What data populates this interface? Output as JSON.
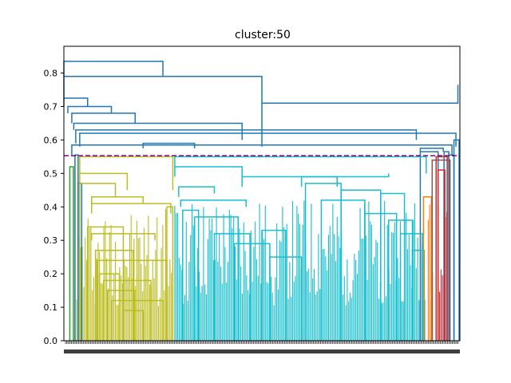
{
  "chart_data": {
    "type": "dendrogram",
    "title": "cluster:50",
    "xlabel": "",
    "ylabel": "",
    "ylim": [
      0,
      0.88
    ],
    "yticks": [
      0.0,
      0.1,
      0.2,
      0.3,
      0.4,
      0.5,
      0.6,
      0.7,
      0.8
    ],
    "ytick_labels": [
      "0.0",
      "0.1",
      "0.2",
      "0.3",
      "0.4",
      "0.5",
      "0.6",
      "0.7",
      "0.8"
    ],
    "x_domain": [
      0,
      1000
    ],
    "cut_threshold": 0.553,
    "cut_line_color": "#800080",
    "colors": {
      "above": "#1f77b4",
      "olive": "#bcbd22",
      "cyan": "#17becf",
      "orange": "#ff7f0e",
      "red": "#d62728",
      "brown": "#8c564b",
      "green": "#2ca02c"
    },
    "links": [
      {
        "x": [
          0,
          250
        ],
        "top": 0.835,
        "bottom": [
          0.79,
          0.79
        ],
        "color": "above"
      },
      {
        "x": [
          0,
          500
        ],
        "top": 0.79,
        "bottom": [
          0.725,
          0.71
        ],
        "color": "above"
      },
      {
        "x": [
          500,
          995
        ],
        "top": 0.71,
        "bottom": [
          0.58,
          0.765
        ],
        "color": "above"
      },
      {
        "x": [
          0,
          60
        ],
        "top": 0.725,
        "bottom": [
          0.7,
          0.7
        ],
        "color": "above"
      },
      {
        "x": [
          10,
          120
        ],
        "top": 0.7,
        "bottom": [
          0.68,
          0.68
        ],
        "color": "above"
      },
      {
        "x": [
          20,
          180
        ],
        "top": 0.68,
        "bottom": [
          0.65,
          0.65
        ],
        "color": "above"
      },
      {
        "x": [
          25,
          450
        ],
        "top": 0.65,
        "bottom": [
          0.63,
          0.6
        ],
        "color": "above"
      },
      {
        "x": [
          30,
          890
        ],
        "top": 0.63,
        "bottom": [
          0.59,
          0.6
        ],
        "color": "above"
      },
      {
        "x": [
          40,
          990
        ],
        "top": 0.62,
        "bottom": [
          0.58,
          0.58
        ],
        "color": "above"
      },
      {
        "x": [
          20,
          980
        ],
        "top": 0.585,
        "bottom": [
          0.555,
          0.555
        ],
        "color": "above"
      },
      {
        "x": [
          200,
          330
        ],
        "top": 0.59,
        "bottom": [
          0.575,
          0.575
        ],
        "color": "above"
      },
      {
        "x": [
          28,
          36
        ],
        "top": 0.555,
        "bottom": [
          0.0,
          0.0
        ],
        "color": "above"
      },
      {
        "x": [
          36,
          45
        ],
        "top": 0.47,
        "bottom": [
          0.0,
          0.0
        ],
        "color": "above"
      },
      {
        "x": [
          960,
          972
        ],
        "top": 0.565,
        "bottom": [
          0.0,
          0.0
        ],
        "color": "above"
      },
      {
        "x": [
          972,
          985
        ],
        "top": 0.555,
        "bottom": [
          0.0,
          0.0
        ],
        "color": "above"
      },
      {
        "x": [
          985,
          998
        ],
        "top": 0.6,
        "bottom": [
          0.0,
          0.0
        ],
        "color": "above"
      },
      {
        "x": [
          900,
          958
        ],
        "top": 0.575,
        "bottom": [
          0.565,
          0.565
        ],
        "color": "above"
      },
      {
        "x": [
          900,
          945
        ],
        "top": 0.565,
        "bottom": [
          0.0,
          0.0
        ],
        "color": "above"
      },
      {
        "x": [
          40,
          275
        ],
        "top": 0.55,
        "bottom": [
          0.5,
          0.45
        ],
        "color": "olive"
      },
      {
        "x": [
          40,
          160
        ],
        "top": 0.5,
        "bottom": [
          0.47,
          0.45
        ],
        "color": "olive"
      },
      {
        "x": [
          40,
          130
        ],
        "top": 0.47,
        "bottom": [
          0.0,
          0.43
        ],
        "color": "olive"
      },
      {
        "x": [
          70,
          200
        ],
        "top": 0.43,
        "bottom": [
          0.4,
          0.41
        ],
        "color": "olive"
      },
      {
        "x": [
          70,
          270
        ],
        "top": 0.41,
        "bottom": [
          0.38,
          0.38
        ],
        "color": "olive"
      },
      {
        "x": [
          60,
          150
        ],
        "top": 0.34,
        "bottom": [
          0.0,
          0.0
        ],
        "color": "olive"
      },
      {
        "x": [
          70,
          230
        ],
        "top": 0.32,
        "bottom": [
          0.3,
          0.3
        ],
        "color": "olive"
      },
      {
        "x": [
          80,
          175
        ],
        "top": 0.27,
        "bottom": [
          0.0,
          0.0
        ],
        "color": "olive"
      },
      {
        "x": [
          85,
          260
        ],
        "top": 0.24,
        "bottom": [
          0.0,
          0.0
        ],
        "color": "olive"
      },
      {
        "x": [
          90,
          140
        ],
        "top": 0.2,
        "bottom": [
          0.0,
          0.0
        ],
        "color": "olive"
      },
      {
        "x": [
          100,
          220
        ],
        "top": 0.18,
        "bottom": [
          0.0,
          0.0
        ],
        "color": "olive"
      },
      {
        "x": [
          110,
          180
        ],
        "top": 0.15,
        "bottom": [
          0.0,
          0.0
        ],
        "color": "olive"
      },
      {
        "x": [
          120,
          250
        ],
        "top": 0.12,
        "bottom": [
          0.0,
          0.0
        ],
        "color": "olive"
      },
      {
        "x": [
          150,
          200
        ],
        "top": 0.09,
        "bottom": [
          0.0,
          0.0
        ],
        "color": "olive"
      },
      {
        "x": [
          260,
          275
        ],
        "top": 0.4,
        "bottom": [
          0.0,
          0.0
        ],
        "color": "olive"
      },
      {
        "x": [
          280,
          915
        ],
        "top": 0.55,
        "bottom": [
          0.52,
          0.5
        ],
        "color": "cyan"
      },
      {
        "x": [
          280,
          450
        ],
        "top": 0.52,
        "bottom": [
          0.49,
          0.49
        ],
        "color": "cyan"
      },
      {
        "x": [
          450,
          820
        ],
        "top": 0.49,
        "bottom": [
          0.46,
          0.5
        ],
        "color": "cyan"
      },
      {
        "x": [
          290,
          380
        ],
        "top": 0.46,
        "bottom": [
          0.43,
          0.44
        ],
        "color": "cyan"
      },
      {
        "x": [
          295,
          460
        ],
        "top": 0.42,
        "bottom": [
          0.4,
          0.4
        ],
        "color": "cyan"
      },
      {
        "x": [
          300,
          340
        ],
        "top": 0.39,
        "bottom": [
          0.0,
          0.0
        ],
        "color": "cyan"
      },
      {
        "x": [
          330,
          440
        ],
        "top": 0.37,
        "bottom": [
          0.0,
          0.0
        ],
        "color": "cyan"
      },
      {
        "x": [
          380,
          470
        ],
        "top": 0.32,
        "bottom": [
          0.0,
          0.0
        ],
        "color": "cyan"
      },
      {
        "x": [
          430,
          520
        ],
        "top": 0.29,
        "bottom": [
          0.0,
          0.0
        ],
        "color": "cyan"
      },
      {
        "x": [
          500,
          560
        ],
        "top": 0.33,
        "bottom": [
          0.0,
          0.0
        ],
        "color": "cyan"
      },
      {
        "x": [
          520,
          600
        ],
        "top": 0.25,
        "bottom": [
          0.0,
          0.0
        ],
        "color": "cyan"
      },
      {
        "x": [
          600,
          690
        ],
        "top": 0.49,
        "bottom": [
          0.46,
          0.46
        ],
        "color": "cyan"
      },
      {
        "x": [
          610,
          700
        ],
        "top": 0.47,
        "bottom": [
          0.0,
          0.0
        ],
        "color": "cyan"
      },
      {
        "x": [
          650,
          760
        ],
        "top": 0.42,
        "bottom": [
          0.0,
          0.0
        ],
        "color": "cyan"
      },
      {
        "x": [
          700,
          800
        ],
        "top": 0.45,
        "bottom": [
          0.0,
          0.0
        ],
        "color": "cyan"
      },
      {
        "x": [
          760,
          840
        ],
        "top": 0.38,
        "bottom": [
          0.0,
          0.0
        ],
        "color": "cyan"
      },
      {
        "x": [
          800,
          860
        ],
        "top": 0.44,
        "bottom": [
          0.0,
          0.0
        ],
        "color": "cyan"
      },
      {
        "x": [
          820,
          880
        ],
        "top": 0.36,
        "bottom": [
          0.0,
          0.0
        ],
        "color": "cyan"
      },
      {
        "x": [
          850,
          905
        ],
        "top": 0.32,
        "bottom": [
          0.0,
          0.0
        ],
        "color": "cyan"
      },
      {
        "x": [
          880,
          910
        ],
        "top": 0.27,
        "bottom": [
          0.0,
          0.0
        ],
        "color": "cyan"
      },
      {
        "x": [
          908,
          928
        ],
        "top": 0.43,
        "bottom": [
          0.0,
          0.0
        ],
        "color": "orange"
      },
      {
        "x": [
          930,
          975
        ],
        "top": 0.54,
        "bottom": [
          0.0,
          0.0
        ],
        "color": "brown"
      },
      {
        "x": [
          940,
          968
        ],
        "top": 0.55,
        "bottom": [
          0.0,
          0.0
        ],
        "color": "red"
      },
      {
        "x": [
          945,
          962
        ],
        "top": 0.51,
        "bottom": [
          0.0,
          0.0
        ],
        "color": "red"
      },
      {
        "x": [
          15,
          24
        ],
        "top": 0.52,
        "bottom": [
          0.0,
          0.0
        ],
        "color": "green"
      }
    ],
    "dense_fills": [
      {
        "x": [
          32,
          275
        ],
        "top": 0.4,
        "color": "olive"
      },
      {
        "x": [
          280,
          915
        ],
        "top": 0.42,
        "color": "cyan"
      },
      {
        "x": [
          920,
          932
        ],
        "top": 0.42,
        "color": "orange"
      },
      {
        "x": [
          945,
          968
        ],
        "top": 0.52,
        "color": "red"
      }
    ]
  }
}
